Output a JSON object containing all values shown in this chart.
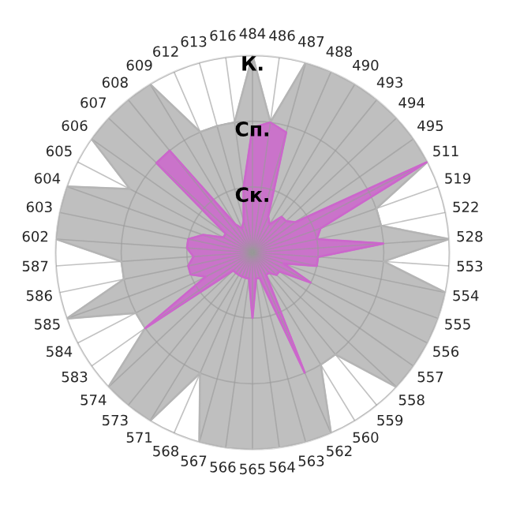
{
  "chart_data": {
    "type": "radar",
    "categories": [
      "484",
      "486",
      "487",
      "488",
      "490",
      "493",
      "494",
      "495",
      "511",
      "519",
      "522",
      "528",
      "553",
      "554",
      "555",
      "556",
      "557",
      "558",
      "559",
      "560",
      "562",
      "563",
      "564",
      "565",
      "566",
      "567",
      "568",
      "571",
      "573",
      "574",
      "583",
      "584",
      "585",
      "586",
      "587",
      "602",
      "603",
      "604",
      "605",
      "606",
      "607",
      "608",
      "609",
      "612",
      "613",
      "616"
    ],
    "ylim": [
      0,
      3
    ],
    "yticks": [
      {
        "value": 1,
        "label": "Ск."
      },
      {
        "value": 2,
        "label": "Сп."
      },
      {
        "value": 3,
        "label": "К."
      }
    ],
    "grid": true,
    "series": [
      {
        "color": "#b4b4b4",
        "values": [
          3,
          2,
          3,
          3,
          3,
          3,
          3,
          3,
          3,
          2,
          2,
          3,
          2,
          3,
          3,
          3,
          3,
          3,
          2,
          2,
          3,
          3,
          3,
          3,
          3,
          3,
          2,
          3,
          3,
          3,
          2,
          2,
          3,
          2,
          2,
          3,
          3,
          3,
          2.1,
          3,
          3,
          3,
          3,
          2,
          2,
          2
        ]
      },
      {
        "color": "#cc66cc",
        "values": [
          1.9,
          2,
          1.9,
          0.6,
          0.5,
          0.7,
          0.7,
          0.8,
          3,
          1.1,
          1,
          2,
          1,
          1,
          0.5,
          1,
          0.5,
          0.5,
          0.4,
          0.4,
          2,
          0.4,
          0.4,
          1,
          0.4,
          0.4,
          0.4,
          0.4,
          0.4,
          0.4,
          2,
          0.8,
          1,
          1,
          0.9,
          1,
          1,
          0.8,
          0.5,
          0.5,
          2,
          2,
          0.5,
          0.4,
          0.5,
          1
        ]
      }
    ]
  }
}
